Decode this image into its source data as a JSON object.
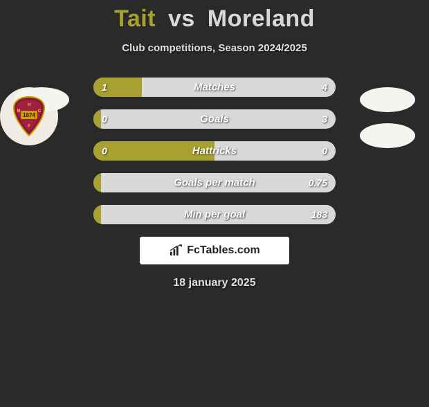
{
  "header": {
    "player1": "Tait",
    "vs": "vs",
    "player2": "Moreland",
    "subtitle": "Club competitions, Season 2024/2025"
  },
  "colors": {
    "player1": "#a8a030",
    "player2": "#d8d8d8",
    "background": "#2a2a2a"
  },
  "bars": [
    {
      "label": "Matches",
      "left_val": "1",
      "right_val": "4",
      "left_pct": 20,
      "right_pct": 80
    },
    {
      "label": "Goals",
      "left_val": "0",
      "right_val": "3",
      "left_pct": 3,
      "right_pct": 97
    },
    {
      "label": "Hattricks",
      "left_val": "0",
      "right_val": "0",
      "left_pct": 50,
      "right_pct": 50
    },
    {
      "label": "Goals per match",
      "left_val": "",
      "right_val": "0.75",
      "left_pct": 3,
      "right_pct": 97
    },
    {
      "label": "Min per goal",
      "left_val": "",
      "right_val": "183",
      "left_pct": 3,
      "right_pct": 97
    }
  ],
  "footer": {
    "brand": "FcTables.com",
    "date": "18 january 2025"
  },
  "crest": {
    "year": "1874",
    "initials": "HMFC"
  }
}
